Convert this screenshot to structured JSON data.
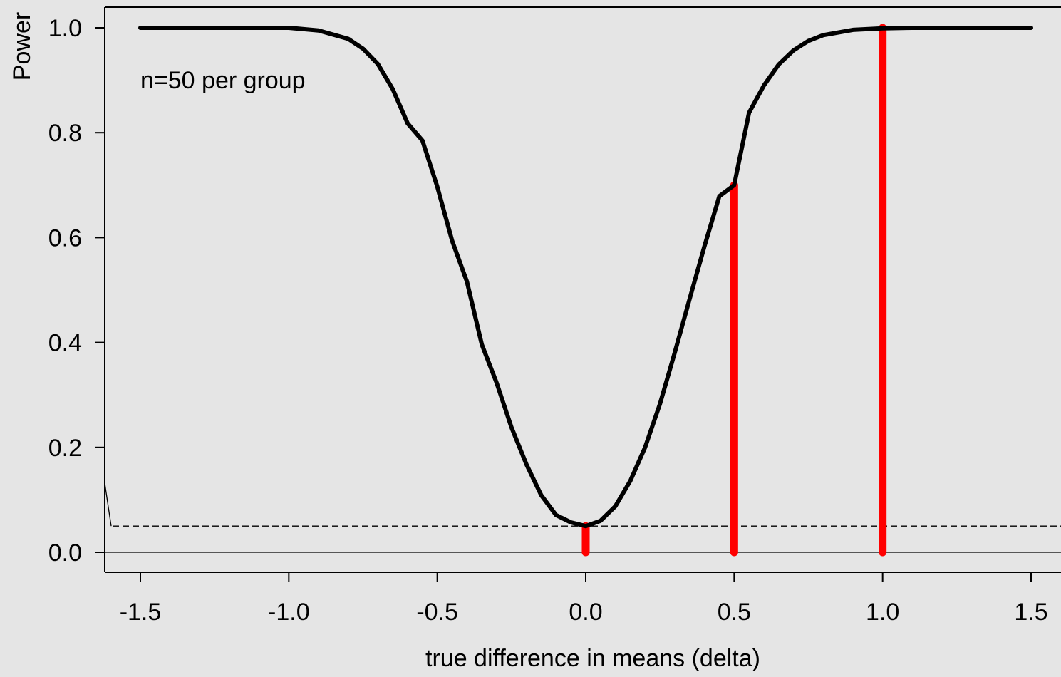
{
  "chart_data": {
    "type": "line",
    "title": "",
    "xlabel": "true difference in means (delta)",
    "ylabel": "Power",
    "xlim": [
      -1.625,
      1.625
    ],
    "ylim": [
      -0.04,
      1.04
    ],
    "x_ticks": [
      "-1.5",
      "-1.0",
      "-0.5",
      "0.0",
      "0.5",
      "1.0",
      "1.5"
    ],
    "y_ticks": [
      "0.0",
      "0.2",
      "0.4",
      "0.6",
      "0.8",
      "1.0"
    ],
    "annotation": "n=50 per group",
    "series": [
      {
        "x": [
          -1.5,
          -1.4,
          -1.3,
          -1.2,
          -1.1,
          -1.0,
          -0.9,
          -0.8,
          -0.75,
          -0.7,
          -0.65,
          -0.6,
          -0.55,
          -0.5,
          -0.45,
          -0.4,
          -0.35,
          -0.3,
          -0.25,
          -0.2,
          -0.15,
          -0.1,
          -0.05,
          0.0,
          0.05,
          0.1,
          0.15,
          0.2,
          0.25,
          0.3,
          0.35,
          0.4,
          0.45,
          0.5,
          0.55,
          0.6,
          0.65,
          0.7,
          0.75,
          0.8,
          0.9,
          1.0,
          1.1,
          1.2,
          1.3,
          1.4,
          1.5
        ],
        "y": [
          1.0,
          1.0,
          1.0,
          1.0,
          1.0,
          1.0,
          0.995,
          0.979,
          0.96,
          0.931,
          0.883,
          0.818,
          0.785,
          0.697,
          0.594,
          0.516,
          0.396,
          0.323,
          0.238,
          0.168,
          0.109,
          0.071,
          0.057,
          0.05,
          0.06,
          0.088,
          0.136,
          0.2,
          0.283,
          0.381,
          0.483,
          0.584,
          0.679,
          0.7,
          0.838,
          0.89,
          0.93,
          0.957,
          0.975,
          0.986,
          0.996,
          0.999,
          1.0,
          1.0,
          1.0,
          1.0,
          1.0
        ]
      }
    ],
    "vertical_bars": [
      {
        "x": 0.0,
        "y": 0.05
      },
      {
        "x": 0.5,
        "y": 0.7
      },
      {
        "x": 1.0,
        "y": 1.0
      }
    ],
    "reference_lines": {
      "dashed_y": 0.05,
      "solid_y": 0.0
    },
    "grid": false,
    "colors": {
      "curve": "#000000",
      "bars": "#ff0000",
      "background": "#e5e5e5"
    }
  }
}
